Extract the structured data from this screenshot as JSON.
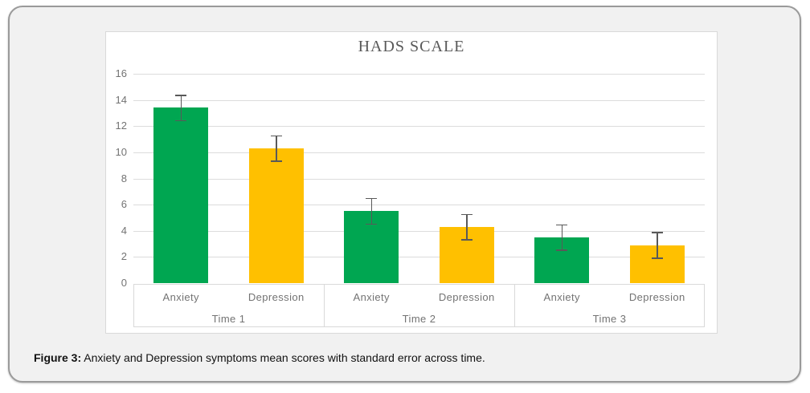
{
  "figure": {
    "caption_label": "Figure 3:",
    "caption_text": " Anxiety and Depression symptoms mean scores with standard error across time."
  },
  "chart_data": {
    "type": "bar",
    "title": "HADS SCALE",
    "groups": [
      "Time 1",
      "Time 2",
      "Time 3"
    ],
    "series_labels": [
      "Anxiety",
      "Depression"
    ],
    "series": [
      {
        "name": "Anxiety",
        "color": "#00a651",
        "values": [
          13.4,
          5.5,
          3.5
        ],
        "std_errors": [
          1.0,
          1.0,
          1.0
        ]
      },
      {
        "name": "Depression",
        "color": "#ffc000",
        "values": [
          10.3,
          4.3,
          2.9
        ],
        "std_errors": [
          1.0,
          1.0,
          1.0
        ]
      }
    ],
    "y_axis": {
      "min": 0,
      "max": 16,
      "step": 2,
      "tick_labels": [
        "0",
        "2",
        "4",
        "6",
        "8",
        "10",
        "12",
        "14",
        "16"
      ]
    },
    "grid": true,
    "legend": "none",
    "error_bar_color": "#595959",
    "colors": {
      "panel_background": "#f1f1f1",
      "panel_border": "#9a9a9a",
      "chart_background": "#ffffff",
      "gridline": "#dcdcdc",
      "axis_text": "#737373",
      "title_text": "#595959"
    }
  }
}
